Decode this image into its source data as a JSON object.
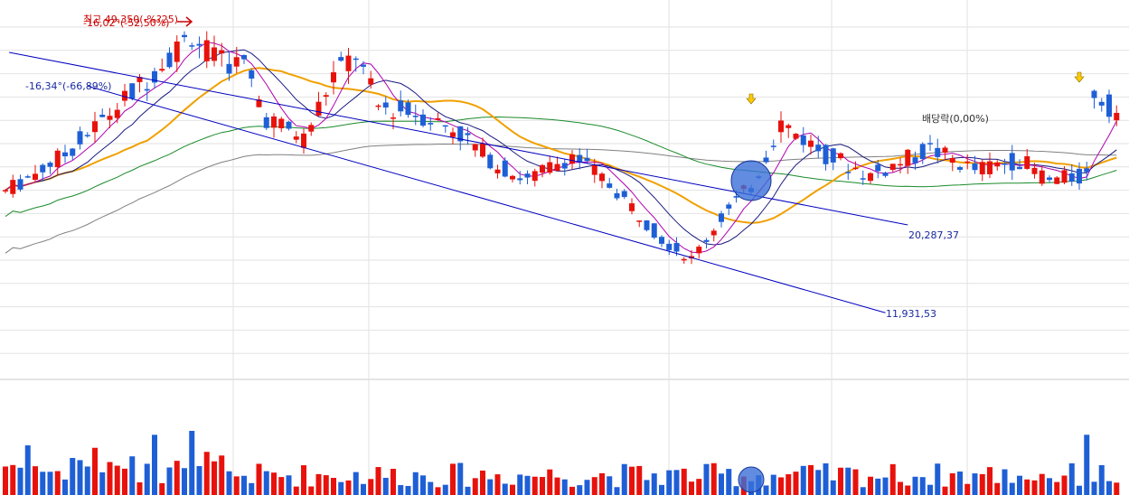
{
  "chart_data": {
    "type": "candlestick",
    "n_candles": 150,
    "price_ylim": [
      8000,
      41000
    ],
    "volume_ylim": [
      0,
      100
    ],
    "grid": true,
    "colors": {
      "up": "#e8120c",
      "down": "#1f5fd6",
      "ma5": "#b000b0",
      "ma10": "#1a1a80",
      "ma20": "#f0a000",
      "ma60": "#1a8a2a",
      "ma120": "#808080",
      "trendline": "#0000c0",
      "annotation_red": "#cc0000",
      "marker_yellow": "#ffcc00",
      "event_circle": "#3a6fd8"
    },
    "annotations": {
      "high_label_a": "최고 49,350(-%?25)",
      "high_label_b": "-16,02°(-52,50%)",
      "slope_label": "-16,34°(-66,89%)",
      "dividend_label": "배당락(0,00%)",
      "upper_line_label": "20,287,37",
      "lower_line_label": "11,931,53"
    },
    "trendlines": [
      {
        "name": "upper",
        "from": [
          0.5,
          36700
        ],
        "to": [
          121,
          20287.37
        ]
      },
      {
        "name": "lower",
        "from": [
          11,
          33500
        ],
        "to": [
          118,
          11931.53
        ]
      }
    ]
  }
}
